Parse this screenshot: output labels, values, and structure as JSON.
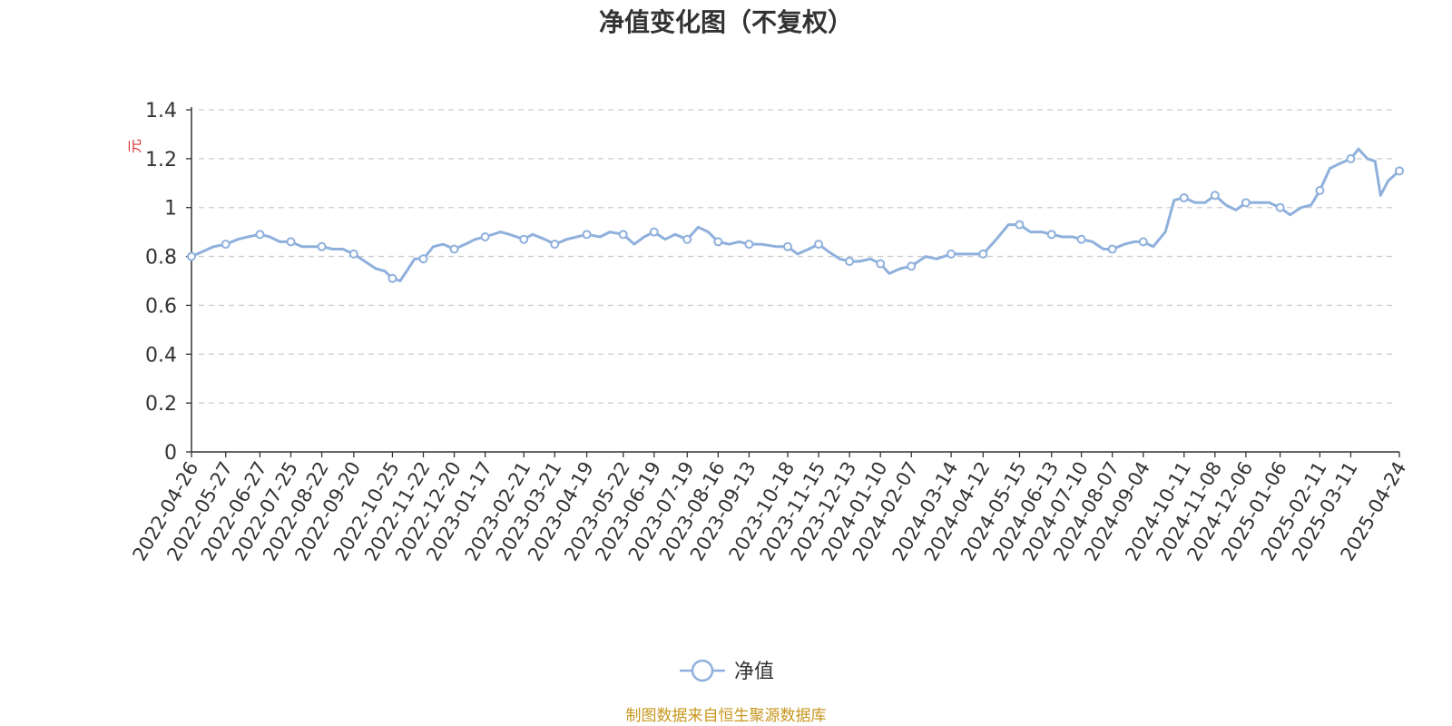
{
  "chart_data": {
    "type": "line",
    "title": "净值变化图（不复权）",
    "ylabel": "元",
    "ylim": [
      0,
      1.4
    ],
    "yticks": [
      "0",
      "0.2",
      "0.4",
      "0.6",
      "0.8",
      "1",
      "1.2",
      "1.4"
    ],
    "grid": true,
    "legend_position": "bottom-center",
    "x_start": "2022-04-26",
    "x_end": "2025-04-24",
    "categories": [
      "2022-04-26",
      "2022-05-27",
      "2022-06-27",
      "2022-07-25",
      "2022-08-22",
      "2022-09-20",
      "2022-10-25",
      "2022-11-22",
      "2022-12-20",
      "2023-01-17",
      "2023-02-21",
      "2023-03-21",
      "2023-04-19",
      "2023-05-22",
      "2023-06-19",
      "2023-07-19",
      "2023-08-16",
      "2023-09-13",
      "2023-10-18",
      "2023-11-15",
      "2023-12-13",
      "2024-01-10",
      "2024-02-07",
      "2024-03-14",
      "2024-04-12",
      "2024-05-15",
      "2024-06-13",
      "2024-07-10",
      "2024-08-07",
      "2024-09-04",
      "2024-10-11",
      "2024-11-08",
      "2024-12-06",
      "2025-01-06",
      "2025-02-11",
      "2025-03-11",
      "2025-04-24"
    ],
    "series": [
      {
        "name": "净值",
        "color": "#8fb0dc",
        "points": [
          [
            "2022-04-26",
            0.8
          ],
          [
            "2022-05-06",
            0.82
          ],
          [
            "2022-05-16",
            0.84
          ],
          [
            "2022-05-27",
            0.85
          ],
          [
            "2022-06-07",
            0.87
          ],
          [
            "2022-06-16",
            0.88
          ],
          [
            "2022-06-27",
            0.89
          ],
          [
            "2022-07-06",
            0.88
          ],
          [
            "2022-07-15",
            0.86
          ],
          [
            "2022-07-25",
            0.86
          ],
          [
            "2022-08-04",
            0.84
          ],
          [
            "2022-08-12",
            0.84
          ],
          [
            "2022-08-22",
            0.84
          ],
          [
            "2022-09-01",
            0.83
          ],
          [
            "2022-09-10",
            0.83
          ],
          [
            "2022-09-20",
            0.81
          ],
          [
            "2022-09-30",
            0.78
          ],
          [
            "2022-10-10",
            0.75
          ],
          [
            "2022-10-18",
            0.74
          ],
          [
            "2022-10-25",
            0.71
          ],
          [
            "2022-11-01",
            0.7
          ],
          [
            "2022-11-07",
            0.74
          ],
          [
            "2022-11-14",
            0.79
          ],
          [
            "2022-11-22",
            0.79
          ],
          [
            "2022-12-01",
            0.84
          ],
          [
            "2022-12-10",
            0.85
          ],
          [
            "2022-12-20",
            0.83
          ],
          [
            "2022-12-30",
            0.85
          ],
          [
            "2023-01-08",
            0.87
          ],
          [
            "2023-01-17",
            0.88
          ],
          [
            "2023-01-31",
            0.9
          ],
          [
            "2023-02-08",
            0.89
          ],
          [
            "2023-02-21",
            0.87
          ],
          [
            "2023-03-01",
            0.89
          ],
          [
            "2023-03-12",
            0.87
          ],
          [
            "2023-03-21",
            0.85
          ],
          [
            "2023-04-01",
            0.87
          ],
          [
            "2023-04-10",
            0.88
          ],
          [
            "2023-04-19",
            0.89
          ],
          [
            "2023-05-01",
            0.88
          ],
          [
            "2023-05-10",
            0.9
          ],
          [
            "2023-05-22",
            0.89
          ],
          [
            "2023-06-01",
            0.85
          ],
          [
            "2023-06-10",
            0.88
          ],
          [
            "2023-06-19",
            0.9
          ],
          [
            "2023-06-29",
            0.87
          ],
          [
            "2023-07-08",
            0.89
          ],
          [
            "2023-07-19",
            0.87
          ],
          [
            "2023-07-29",
            0.92
          ],
          [
            "2023-08-07",
            0.9
          ],
          [
            "2023-08-16",
            0.86
          ],
          [
            "2023-08-26",
            0.85
          ],
          [
            "2023-09-04",
            0.86
          ],
          [
            "2023-09-13",
            0.85
          ],
          [
            "2023-09-24",
            0.85
          ],
          [
            "2023-10-08",
            0.84
          ],
          [
            "2023-10-18",
            0.84
          ],
          [
            "2023-10-27",
            0.81
          ],
          [
            "2023-11-06",
            0.83
          ],
          [
            "2023-11-15",
            0.85
          ],
          [
            "2023-11-24",
            0.82
          ],
          [
            "2023-12-04",
            0.79
          ],
          [
            "2023-12-13",
            0.78
          ],
          [
            "2023-12-22",
            0.78
          ],
          [
            "2024-01-01",
            0.79
          ],
          [
            "2024-01-10",
            0.77
          ],
          [
            "2024-01-18",
            0.73
          ],
          [
            "2024-01-28",
            0.75
          ],
          [
            "2024-02-07",
            0.76
          ],
          [
            "2024-02-20",
            0.8
          ],
          [
            "2024-03-01",
            0.79
          ],
          [
            "2024-03-14",
            0.81
          ],
          [
            "2024-03-25",
            0.81
          ],
          [
            "2024-04-03",
            0.81
          ],
          [
            "2024-04-12",
            0.81
          ],
          [
            "2024-04-24",
            0.87
          ],
          [
            "2024-05-05",
            0.93
          ],
          [
            "2024-05-15",
            0.93
          ],
          [
            "2024-05-25",
            0.9
          ],
          [
            "2024-06-04",
            0.9
          ],
          [
            "2024-06-13",
            0.89
          ],
          [
            "2024-06-23",
            0.88
          ],
          [
            "2024-07-02",
            0.88
          ],
          [
            "2024-07-10",
            0.87
          ],
          [
            "2024-07-20",
            0.86
          ],
          [
            "2024-07-30",
            0.83
          ],
          [
            "2024-08-07",
            0.83
          ],
          [
            "2024-08-18",
            0.85
          ],
          [
            "2024-08-27",
            0.86
          ],
          [
            "2024-09-04",
            0.86
          ],
          [
            "2024-09-13",
            0.84
          ],
          [
            "2024-09-24",
            0.9
          ],
          [
            "2024-10-02",
            1.03
          ],
          [
            "2024-10-11",
            1.04
          ],
          [
            "2024-10-21",
            1.02
          ],
          [
            "2024-10-30",
            1.02
          ],
          [
            "2024-11-08",
            1.05
          ],
          [
            "2024-11-18",
            1.01
          ],
          [
            "2024-11-27",
            0.99
          ],
          [
            "2024-12-06",
            1.02
          ],
          [
            "2024-12-17",
            1.02
          ],
          [
            "2024-12-27",
            1.02
          ],
          [
            "2025-01-06",
            1.0
          ],
          [
            "2025-01-15",
            0.97
          ],
          [
            "2025-01-25",
            1.0
          ],
          [
            "2025-02-03",
            1.01
          ],
          [
            "2025-02-11",
            1.07
          ],
          [
            "2025-02-20",
            1.16
          ],
          [
            "2025-03-01",
            1.18
          ],
          [
            "2025-03-11",
            1.2
          ],
          [
            "2025-03-18",
            1.24
          ],
          [
            "2025-03-26",
            1.2
          ],
          [
            "2025-04-02",
            1.19
          ],
          [
            "2025-04-07",
            1.05
          ],
          [
            "2025-04-14",
            1.11
          ],
          [
            "2025-04-24",
            1.15
          ]
        ]
      }
    ]
  },
  "legend": {
    "label": "净值"
  },
  "source": "制图数据来自恒生聚源数据库"
}
